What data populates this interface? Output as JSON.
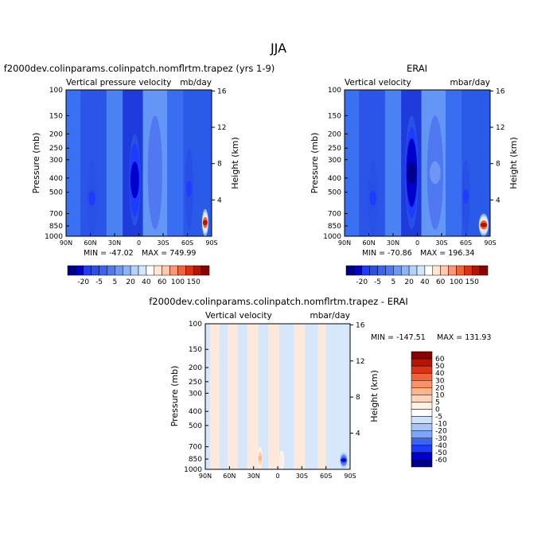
{
  "season_title": "JJA",
  "colors": {
    "main_scale": [
      "#00008b",
      "#0000cd",
      "#1e3cff",
      "#2850e6",
      "#3c64f0",
      "#5078f0",
      "#6e96f5",
      "#8cb4fa",
      "#b4d2fc",
      "#d2e6ff",
      "#ffffff",
      "#ffe6d2",
      "#ffc8aa",
      "#fa9678",
      "#f0643c",
      "#dc3214",
      "#b41400",
      "#8b0000"
    ],
    "diff_scale": [
      "#00008b",
      "#0000cd",
      "#1e3cff",
      "#3c64f0",
      "#5a82f5",
      "#7ea6f8",
      "#a6c6fb",
      "#cde0fe",
      "#e6f0ff",
      "#ffffff",
      "#fff0e6",
      "#ffd2b9",
      "#ffb48c",
      "#fa9066",
      "#f56a40",
      "#e64822",
      "#c82a0a",
      "#a01400",
      "#7a0000"
    ]
  },
  "chart_data": [
    {
      "type": "heatmap",
      "name": "model",
      "title": "f2000dev.colinparams.colinpatch.nomflrtm.trapez (yrs 1-9)",
      "left_label": "Vertical pressure velocity",
      "right_label": "mb/day",
      "ylabel": "Pressure (mb)",
      "ylabel_right": "Height (km)",
      "x_ticks": [
        "90N",
        "60N",
        "30N",
        "0",
        "30S",
        "60S",
        "90S"
      ],
      "x_range": [
        90,
        -90
      ],
      "y_ticks": [
        100,
        150,
        200,
        250,
        300,
        400,
        500,
        700,
        850,
        1000
      ],
      "y_range": [
        100,
        1000
      ],
      "y_scale": "log",
      "height_ticks": [
        16,
        12,
        8,
        4
      ],
      "min_text": "MIN = -47.02",
      "max_text": "MAX = 749.99",
      "colorbar_labels": [
        "-20",
        "-5",
        "5",
        "20",
        "40",
        "60",
        "100",
        "150"
      ],
      "features": [
        {
          "lat": 5,
          "p_top": 200,
          "p_bot": 850,
          "width": 7,
          "value": -40
        },
        {
          "lat": -20,
          "p_top": 150,
          "p_bot": 900,
          "width": 9,
          "value": 15
        },
        {
          "lat": 58,
          "p_top": 300,
          "p_bot": 1000,
          "width": 6,
          "value": -20
        },
        {
          "lat": -62,
          "p_top": 250,
          "p_bot": 900,
          "width": 5,
          "value": -20
        },
        {
          "lat": -82,
          "p_top": 650,
          "p_bot": 1000,
          "width": 4,
          "value": 150
        }
      ]
    },
    {
      "type": "heatmap",
      "name": "obs",
      "title": "ERAI",
      "left_label": "Vertical velocity",
      "right_label": "mbar/day",
      "ylabel": "Pressure (mb)",
      "ylabel_right": "Height (km)",
      "x_ticks": [
        "90N",
        "60N",
        "30N",
        "0",
        "30S",
        "60S",
        "90S"
      ],
      "x_range": [
        90,
        -90
      ],
      "y_ticks": [
        100,
        150,
        200,
        250,
        300,
        400,
        500,
        700,
        850,
        1000
      ],
      "y_range": [
        100,
        1000
      ],
      "y_scale": "log",
      "height_ticks": [
        16,
        12,
        8,
        4
      ],
      "min_text": "MIN = -70.86",
      "max_text": "MAX = 196.34",
      "colorbar_labels": [
        "-20",
        "-5",
        "5",
        "20",
        "40",
        "60",
        "100",
        "150"
      ],
      "features": [
        {
          "lat": 7,
          "p_top": 150,
          "p_bot": 900,
          "width": 8,
          "value": -50
        },
        {
          "lat": -22,
          "p_top": 150,
          "p_bot": 900,
          "width": 10,
          "value": 20
        },
        {
          "lat": 55,
          "p_top": 300,
          "p_bot": 1000,
          "width": 6,
          "value": -20
        },
        {
          "lat": -60,
          "p_top": 300,
          "p_bot": 950,
          "width": 5,
          "value": -20
        },
        {
          "lat": -82,
          "p_top": 700,
          "p_bot": 1000,
          "width": 6,
          "value": 150
        }
      ]
    },
    {
      "type": "heatmap",
      "name": "diff",
      "title": "f2000dev.colinparams.colinpatch.nomflrtm.trapez - ERAI",
      "left_label": "Vertical velocity",
      "right_label": "mbar/day",
      "ylabel": "Pressure (mb)",
      "ylabel_right": "Height (km)",
      "x_ticks": [
        "90N",
        "60N",
        "30N",
        "0",
        "30S",
        "60S",
        "90S"
      ],
      "x_range": [
        90,
        -90
      ],
      "y_ticks": [
        100,
        150,
        200,
        250,
        300,
        400,
        500,
        700,
        850,
        1000
      ],
      "y_range": [
        100,
        1000
      ],
      "y_scale": "log",
      "height_ticks": [
        16,
        12,
        4,
        8
      ],
      "min_text": "MIN = -147.51",
      "max_text": "MAX = 131.93",
      "colorbar_labels": [
        "60",
        "50",
        "40",
        "30",
        "20",
        "10",
        "5",
        "0",
        "-5",
        "-10",
        "-20",
        "-30",
        "-40",
        "-50",
        "-60"
      ],
      "features": [
        {
          "lat": -82,
          "p_top": 750,
          "p_bot": 1000,
          "width": 5,
          "value": -60
        },
        {
          "lat": 22,
          "p_top": 700,
          "p_bot": 1000,
          "width": 3,
          "value": 20
        },
        {
          "lat": -5,
          "p_top": 750,
          "p_bot": 1000,
          "width": 3,
          "value": 10
        }
      ]
    }
  ]
}
